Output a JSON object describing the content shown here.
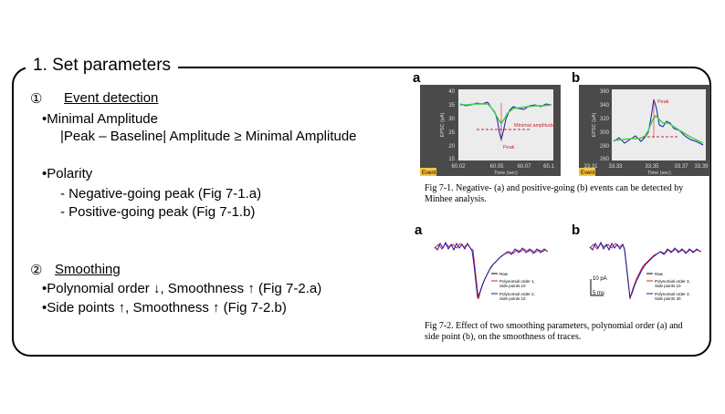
{
  "title": "1. Set parameters",
  "section1": {
    "num": "①",
    "heading": "Event detection",
    "b1": "•Minimal Amplitude",
    "b1_sub": "|Peak – Baseline| Amplitude ≥ Minimal Amplitude",
    "b2": "•Polarity",
    "b2_sub1": "- Negative-going peak (Fig 7-1.a)",
    "b2_sub2": "- Positive-going peak (Fig 7-1.b)"
  },
  "section2": {
    "num": "②",
    "heading": "Smoothing",
    "b1": "•Polynomial order ↓, Smoothness ↑ (Fig 7-2.a)",
    "b2": "•Side points ↑, Smoothness ↑ (Fig 7-2.b)"
  },
  "fig1": {
    "a": {
      "letter": "a",
      "ylabel": "EPSC (pA)",
      "xlabel": "Time (sec)",
      "yticks": [
        "40",
        "35",
        "30",
        "25",
        "20",
        "15"
      ],
      "xticks": [
        "60.02",
        "60.05",
        "60.07",
        "60.1"
      ],
      "xticks_mid": "60.05",
      "peak": "Peak",
      "minamp": "Minimal amplitude",
      "tag": "Event"
    },
    "b": {
      "letter": "b",
      "ylabel": "EPSC (pA)",
      "xlabel": "Time (sec)",
      "yticks": [
        "360",
        "340",
        "320",
        "300",
        "280",
        "260"
      ],
      "xticks": [
        "33.31",
        "33.33",
        "33.35",
        "33.37",
        "33.39"
      ],
      "peak": "Peak",
      "tag": "Event"
    },
    "caption_l1": "Fig 7-1. Negative- (a) and positive-going (b) events can be detected by",
    "caption_l2": "Minhee analysis."
  },
  "fig2": {
    "a": {
      "letter": "a",
      "legend": [
        "Raw",
        "Polynomial order 1,",
        "Side points 10",
        "Polynomial order 2,",
        "Side points 10"
      ]
    },
    "b": {
      "letter": "b",
      "scale_pa": "10 pA",
      "scale_ms": "5 ms",
      "legend": [
        "Raw",
        "Polynomial order 3,",
        "Side points 10",
        "Polynomial order 3,",
        "Side points 30"
      ]
    },
    "caption_l1": "Fig 7-2. Effect of two smoothing parameters, polynomial order (a) and",
    "caption_l2": "side point (b), on the smoothness of traces."
  },
  "colors": {
    "raw": "#1a1aa8",
    "smooth": "#e0202a",
    "green": "#3bd14a",
    "panel_bg": "#ececec",
    "panel_border": "#555555",
    "tag": "#f4c542"
  }
}
